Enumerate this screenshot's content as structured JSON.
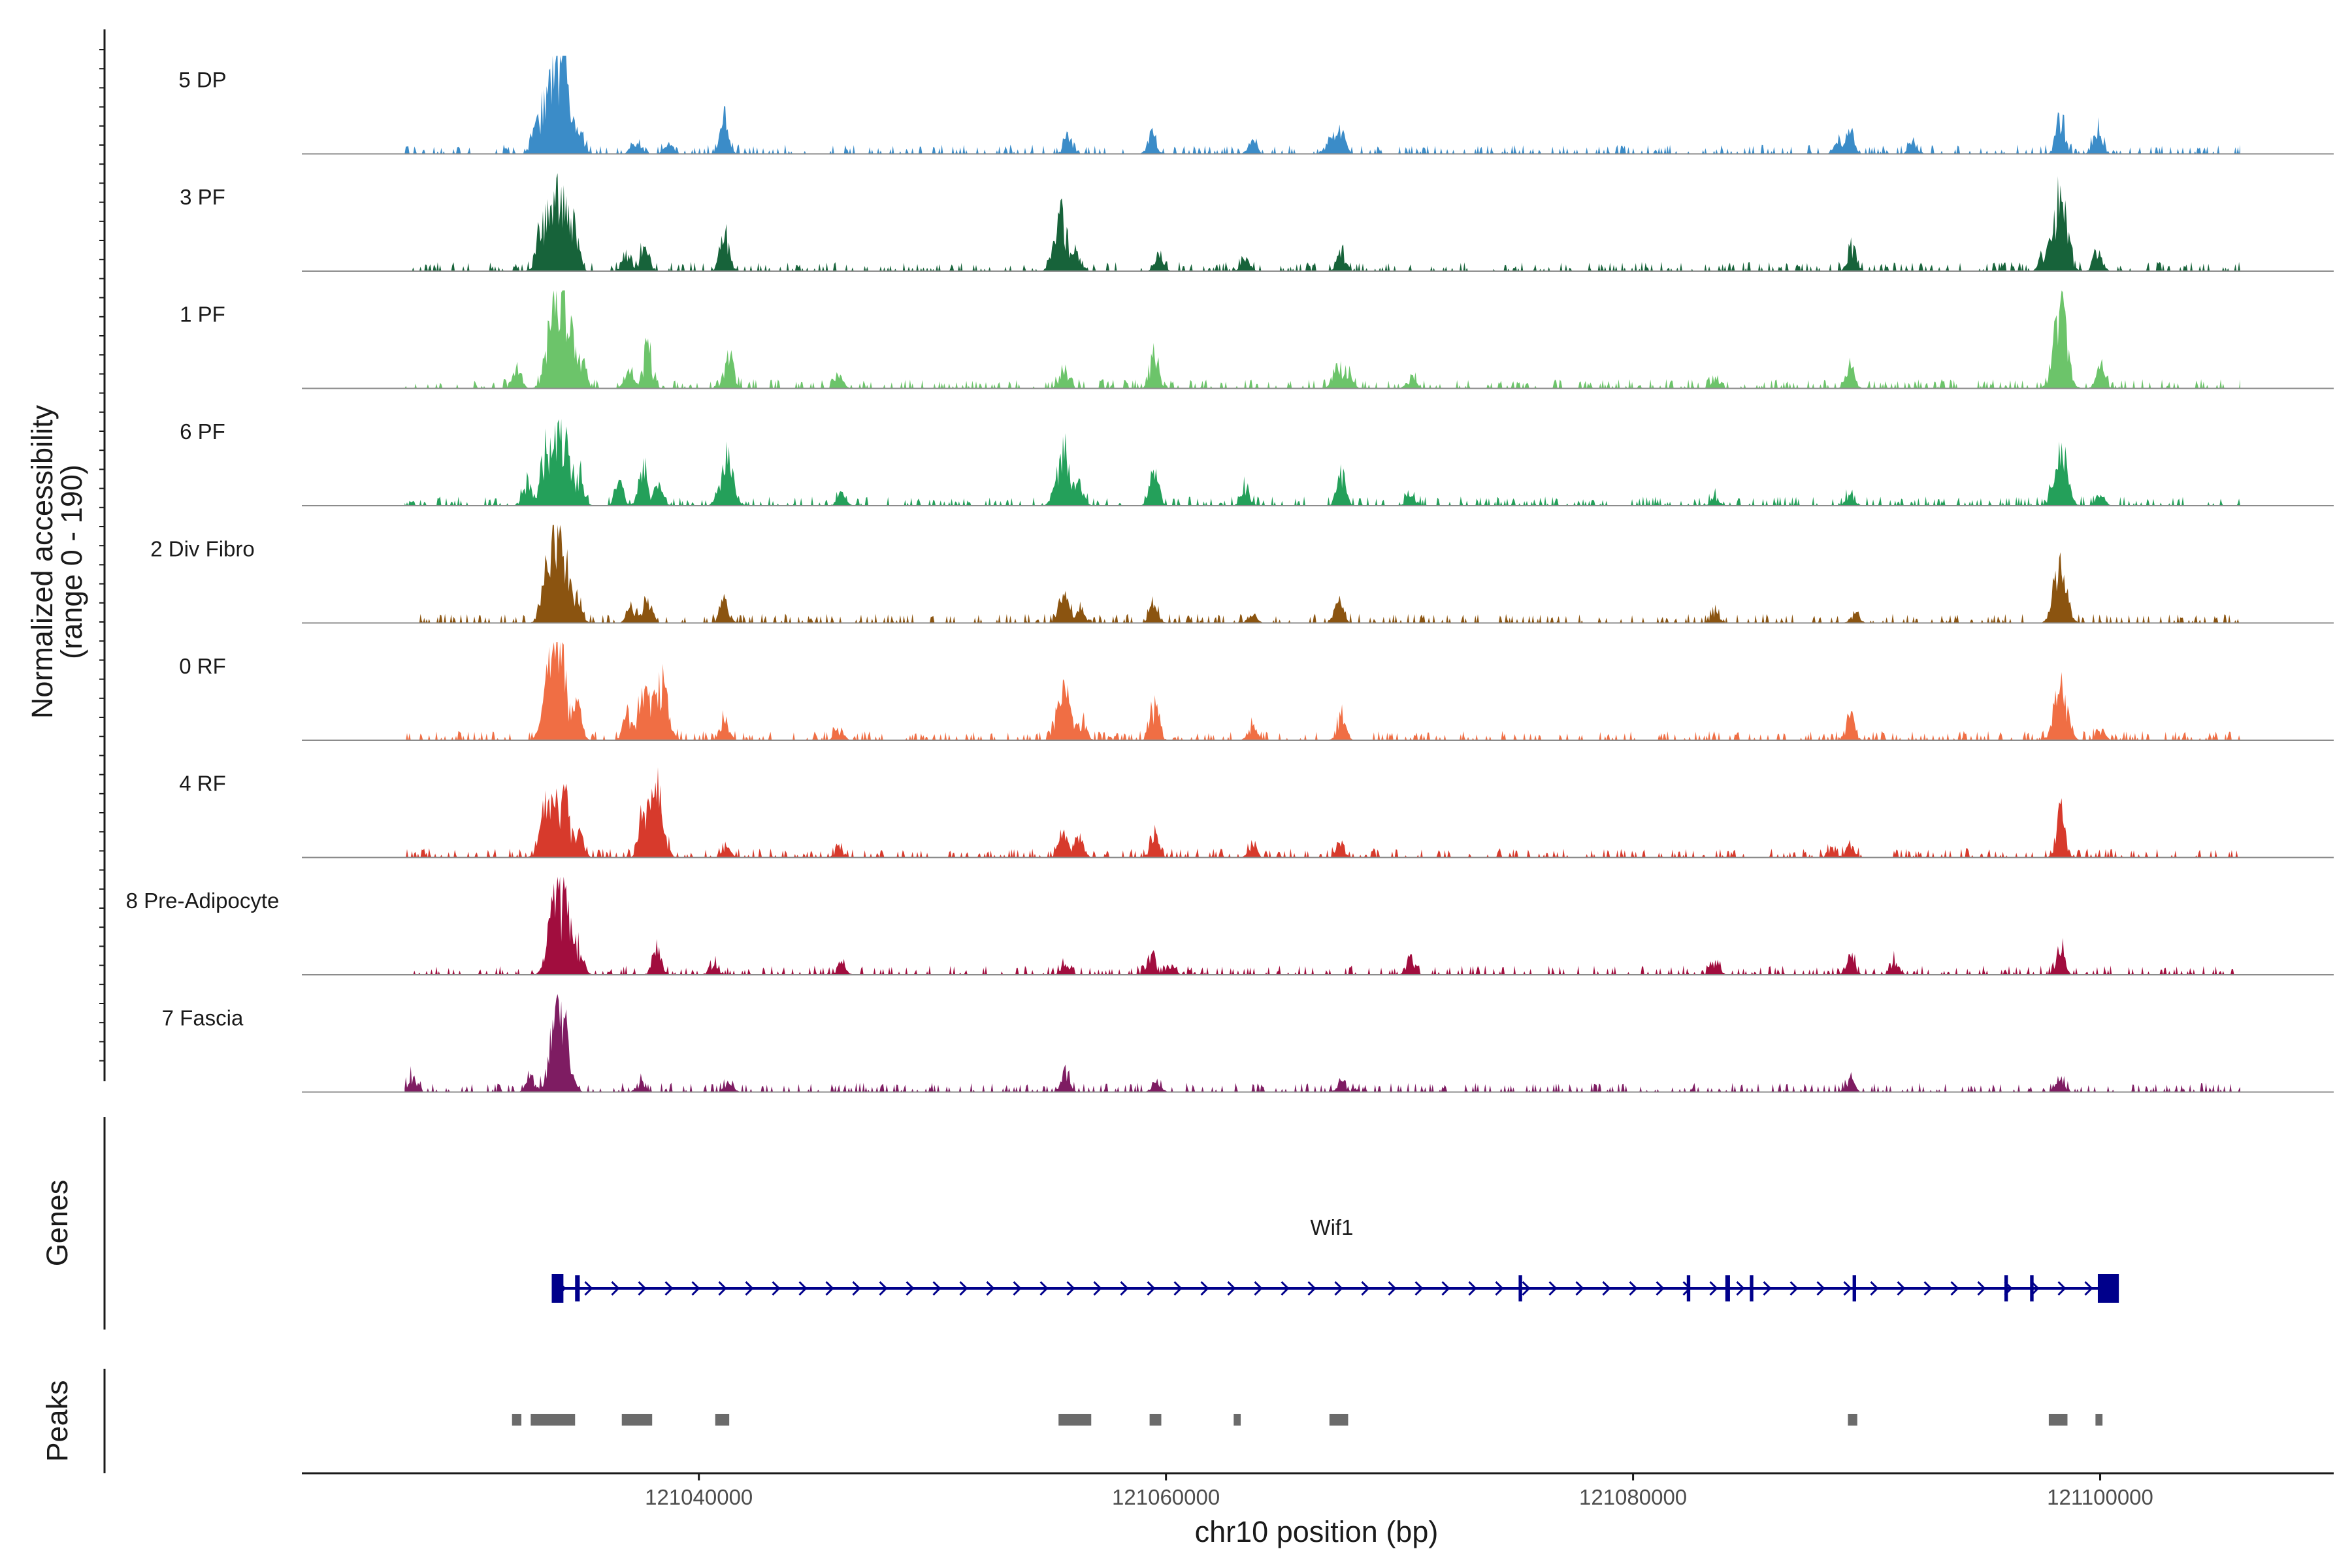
{
  "chart_data": {
    "type": "area",
    "title": "",
    "chromosome": "chr10",
    "xlabel": "chr10 position (bp)",
    "ylabel": "Normalized accessibility",
    "ylabel_range": "(range 0 - 190)",
    "xlim": [
      121023000,
      121110000
    ],
    "ylim": [
      0,
      190
    ],
    "x_ticks": [
      121040000,
      121060000,
      121080000,
      121100000
    ],
    "x_tick_labels": [
      "121040000",
      "121060000",
      "121080000",
      "121100000"
    ],
    "signal_start": 121027400,
    "signal_end": 121106000,
    "series": [
      {
        "name": "5 DP",
        "color": "#3b8cc8",
        "scale": 1.0,
        "seed": 11,
        "peaks": [
          [
            121034200,
            190
          ],
          [
            121033600,
            165
          ],
          [
            121033000,
            60
          ],
          [
            121034900,
            40
          ],
          [
            121041100,
            70
          ],
          [
            121037300,
            35
          ],
          [
            121038700,
            20
          ],
          [
            121055800,
            30
          ],
          [
            121059400,
            45
          ],
          [
            121063700,
            25
          ],
          [
            121067500,
            50
          ],
          [
            121067000,
            30
          ],
          [
            121089300,
            45
          ],
          [
            121088800,
            25
          ],
          [
            121098300,
            85
          ],
          [
            121099900,
            55
          ],
          [
            121092000,
            25
          ]
        ]
      },
      {
        "name": "3 PF",
        "color": "#17633a",
        "scale": 1.0,
        "seed": 23,
        "peaks": [
          [
            121034100,
            190
          ],
          [
            121033400,
            125
          ],
          [
            121034700,
            70
          ],
          [
            121037700,
            55
          ],
          [
            121036900,
            35
          ],
          [
            121041100,
            95
          ],
          [
            121055500,
            120
          ],
          [
            121056200,
            40
          ],
          [
            121059700,
            30
          ],
          [
            121063400,
            30
          ],
          [
            121067500,
            50
          ],
          [
            121089400,
            60
          ],
          [
            121098300,
            175
          ],
          [
            121097600,
            40
          ],
          [
            121099900,
            50
          ]
        ]
      },
      {
        "name": "1 PF",
        "color": "#6cc46a",
        "scale": 1.0,
        "seed": 37,
        "peaks": [
          [
            121034300,
            190
          ],
          [
            121033700,
            130
          ],
          [
            121035000,
            55
          ],
          [
            121032200,
            40
          ],
          [
            121037800,
            90
          ],
          [
            121037000,
            40
          ],
          [
            121041300,
            85
          ],
          [
            121046000,
            25
          ],
          [
            121055600,
            45
          ],
          [
            121059500,
            80
          ],
          [
            121067300,
            45
          ],
          [
            121067800,
            35
          ],
          [
            121070500,
            25
          ],
          [
            121083500,
            20
          ],
          [
            121089300,
            45
          ],
          [
            121098300,
            190
          ],
          [
            121100000,
            45
          ]
        ]
      },
      {
        "name": "6 PF",
        "color": "#24a05a",
        "scale": 1.0,
        "seed": 53,
        "peaks": [
          [
            121034200,
            160
          ],
          [
            121033500,
            125
          ],
          [
            121032600,
            45
          ],
          [
            121034900,
            60
          ],
          [
            121037600,
            80
          ],
          [
            121036600,
            50
          ],
          [
            121038300,
            40
          ],
          [
            121041200,
            110
          ],
          [
            121046100,
            25
          ],
          [
            121055600,
            125
          ],
          [
            121056300,
            40
          ],
          [
            121059500,
            80
          ],
          [
            121063400,
            35
          ],
          [
            121067500,
            70
          ],
          [
            121070500,
            25
          ],
          [
            121083500,
            20
          ],
          [
            121089300,
            25
          ],
          [
            121098300,
            125
          ],
          [
            121100000,
            25
          ]
        ]
      },
      {
        "name": "2 Div Fibro",
        "color": "#8b5410",
        "scale": 1.0,
        "seed": 71,
        "peaks": [
          [
            121034100,
            190
          ],
          [
            121033600,
            140
          ],
          [
            121034800,
            60
          ],
          [
            121037800,
            55
          ],
          [
            121037100,
            30
          ],
          [
            121041100,
            55
          ],
          [
            121055600,
            75
          ],
          [
            121056300,
            30
          ],
          [
            121059500,
            45
          ],
          [
            121063700,
            20
          ],
          [
            121067400,
            45
          ],
          [
            121083500,
            20
          ],
          [
            121089500,
            20
          ],
          [
            121098300,
            125
          ]
        ]
      },
      {
        "name": "0 RF",
        "color": "#f06e44",
        "scale": 1.0,
        "seed": 89,
        "peaks": [
          [
            121034100,
            175
          ],
          [
            121033600,
            130
          ],
          [
            121034800,
            70
          ],
          [
            121037700,
            105
          ],
          [
            121038400,
            125
          ],
          [
            121036900,
            50
          ],
          [
            121041100,
            45
          ],
          [
            121046000,
            25
          ],
          [
            121055600,
            110
          ],
          [
            121056400,
            40
          ],
          [
            121059500,
            80
          ],
          [
            121063700,
            30
          ],
          [
            121067500,
            50
          ],
          [
            121089300,
            55
          ],
          [
            121098300,
            115
          ],
          [
            121100000,
            25
          ]
        ]
      },
      {
        "name": "4 RF",
        "color": "#d73a2c",
        "scale": 1.0,
        "seed": 101,
        "peaks": [
          [
            121034200,
            130
          ],
          [
            121033500,
            115
          ],
          [
            121034900,
            45
          ],
          [
            121038200,
            145
          ],
          [
            121037600,
            90
          ],
          [
            121041200,
            20
          ],
          [
            121046000,
            20
          ],
          [
            121055600,
            50
          ],
          [
            121056300,
            40
          ],
          [
            121059500,
            55
          ],
          [
            121063700,
            25
          ],
          [
            121067500,
            30
          ],
          [
            121089300,
            25
          ],
          [
            121088500,
            20
          ],
          [
            121098300,
            100
          ]
        ]
      },
      {
        "name": "8 Pre-Adipocyte",
        "color": "#a10d3e",
        "scale": 1.0,
        "seed": 127,
        "peaks": [
          [
            121033800,
            135
          ],
          [
            121034300,
            125
          ],
          [
            121034900,
            45
          ],
          [
            121038200,
            55
          ],
          [
            121040600,
            20
          ],
          [
            121046100,
            25
          ],
          [
            121055700,
            25
          ],
          [
            121059400,
            45
          ],
          [
            121060200,
            25
          ],
          [
            121070500,
            35
          ],
          [
            121083500,
            30
          ],
          [
            121089300,
            40
          ],
          [
            121091200,
            25
          ],
          [
            121098300,
            55
          ]
        ]
      },
      {
        "name": "7 Fascia",
        "color": "#7e1c62",
        "scale": 1.0,
        "seed": 149,
        "peaks": [
          [
            121034200,
            130
          ],
          [
            121033800,
            110
          ],
          [
            121032800,
            35
          ],
          [
            121027700,
            35
          ],
          [
            121037500,
            20
          ],
          [
            121041300,
            20
          ],
          [
            121055700,
            45
          ],
          [
            121059600,
            25
          ],
          [
            121067500,
            20
          ],
          [
            121089300,
            25
          ],
          [
            121098300,
            30
          ]
        ]
      }
    ],
    "genes": [
      {
        "name": "Wif1",
        "strand": "+",
        "start": 121033700,
        "end": 121100500,
        "exons": [
          [
            121033700,
            121034200
          ],
          [
            121034700,
            121034900
          ],
          [
            121075100,
            121075250
          ],
          [
            121082300,
            121082450
          ],
          [
            121083950,
            121084150
          ],
          [
            121085000,
            121085150
          ],
          [
            121089400,
            121089550
          ],
          [
            121095900,
            121096050
          ],
          [
            121097000,
            121097150
          ],
          [
            121099900,
            121100800
          ]
        ]
      }
    ],
    "peaks": [
      [
        121032000,
        121032400
      ],
      [
        121032800,
        121034700
      ],
      [
        121036700,
        121038000
      ],
      [
        121040700,
        121041300
      ],
      [
        121055400,
        121056800
      ],
      [
        121059300,
        121059800
      ],
      [
        121062900,
        121063200
      ],
      [
        121067000,
        121067800
      ],
      [
        121089200,
        121089600
      ],
      [
        121097800,
        121098600
      ],
      [
        121099800,
        121100100
      ]
    ],
    "genes_label": "Genes",
    "peaks_label": "Peaks"
  }
}
